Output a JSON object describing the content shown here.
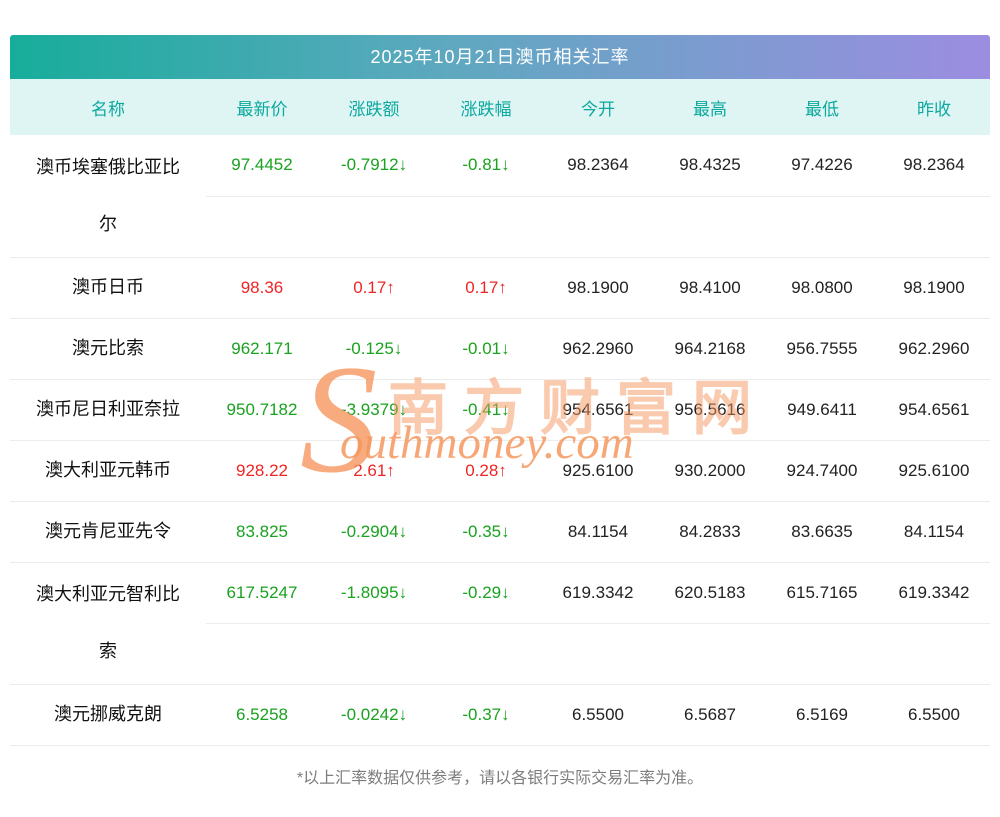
{
  "page": {
    "title": "2025年10月21日澳币相关汇率",
    "footnote": "*以上汇率数据仅供参考，请以各银行实际交易汇率为准。"
  },
  "colors": {
    "title_gradient_left": "#17ad9b",
    "title_gradient_right": "#9c8de1",
    "header_bg": "#def5f4",
    "header_text": "#0da89e",
    "up_red": "#ee2525",
    "down_green": "#19a21f",
    "watermark_orange": "#f6965e"
  },
  "watermark": {
    "initial": "S",
    "cn": "南方财富网",
    "en": "outhmoney.com"
  },
  "table": {
    "headers": [
      "名称",
      "最新价",
      "涨跌额",
      "涨跌幅",
      "今开",
      "最高",
      "最低",
      "昨收"
    ],
    "rows": [
      {
        "name": "澳币埃塞俄比亚比尔",
        "latest": "97.4452",
        "change": "-0.7912↓",
        "pct": "-0.81↓",
        "open": "98.2364",
        "high": "98.4325",
        "low": "97.4226",
        "prev": "98.2364",
        "direction": "down"
      },
      {
        "name": "澳币日币",
        "latest": "98.36",
        "change": "0.17↑",
        "pct": "0.17↑",
        "open": "98.1900",
        "high": "98.4100",
        "low": "98.0800",
        "prev": "98.1900",
        "direction": "up"
      },
      {
        "name": "澳元比索",
        "latest": "962.171",
        "change": "-0.125↓",
        "pct": "-0.01↓",
        "open": "962.2960",
        "high": "964.2168",
        "low": "956.7555",
        "prev": "962.2960",
        "direction": "down"
      },
      {
        "name": "澳币尼日利亚奈拉",
        "latest": "950.7182",
        "change": "-3.9379↓",
        "pct": "-0.41↓",
        "open": "954.6561",
        "high": "956.5616",
        "low": "949.6411",
        "prev": "954.6561",
        "direction": "down"
      },
      {
        "name": "澳大利亚元韩币",
        "latest": "928.22",
        "change": "2.61↑",
        "pct": "0.28↑",
        "open": "925.6100",
        "high": "930.2000",
        "low": "924.7400",
        "prev": "925.6100",
        "direction": "up"
      },
      {
        "name": "澳元肯尼亚先令",
        "latest": "83.825",
        "change": "-0.2904↓",
        "pct": "-0.35↓",
        "open": "84.1154",
        "high": "84.2833",
        "low": "83.6635",
        "prev": "84.1154",
        "direction": "down"
      },
      {
        "name": "澳大利亚元智利比索",
        "latest": "617.5247",
        "change": "-1.8095↓",
        "pct": "-0.29↓",
        "open": "619.3342",
        "high": "620.5183",
        "low": "615.7165",
        "prev": "619.3342",
        "direction": "down"
      },
      {
        "name": "澳元挪威克朗",
        "latest": "6.5258",
        "change": "-0.0242↓",
        "pct": "-0.37↓",
        "open": "6.5500",
        "high": "6.5687",
        "low": "6.5169",
        "prev": "6.5500",
        "direction": "down"
      }
    ]
  }
}
